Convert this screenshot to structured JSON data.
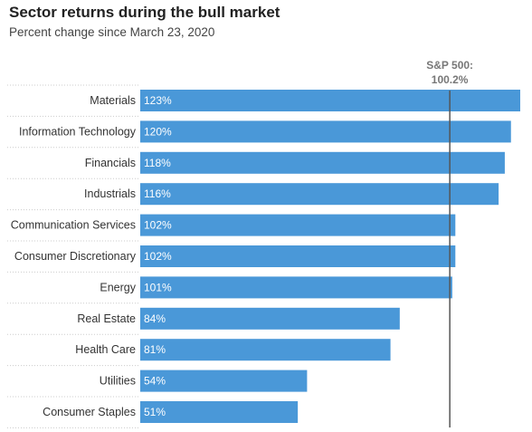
{
  "chart_data": {
    "type": "bar",
    "orientation": "horizontal",
    "title": "Sector returns during the bull market",
    "subtitle": "Percent change since March 23, 2020",
    "categories": [
      "Materials",
      "Information Technology",
      "Financials",
      "Industrials",
      "Communication Services",
      "Consumer Discretionary",
      "Energy",
      "Real Estate",
      "Health Care",
      "Utilities",
      "Consumer Staples"
    ],
    "values": [
      123,
      120,
      118,
      116,
      102,
      102,
      101,
      84,
      81,
      54,
      51
    ],
    "value_labels": [
      "123%",
      "120%",
      "118%",
      "116%",
      "102%",
      "102%",
      "101%",
      "84%",
      "81%",
      "54%",
      "51%"
    ],
    "reference_line": {
      "label_line1": "S&P 500:",
      "label_line2": "100.2%",
      "value": 100.2
    },
    "xlim": [
      0,
      123
    ],
    "grid": false,
    "bar_color": "#4a98d8",
    "reference_color": "#555555"
  }
}
